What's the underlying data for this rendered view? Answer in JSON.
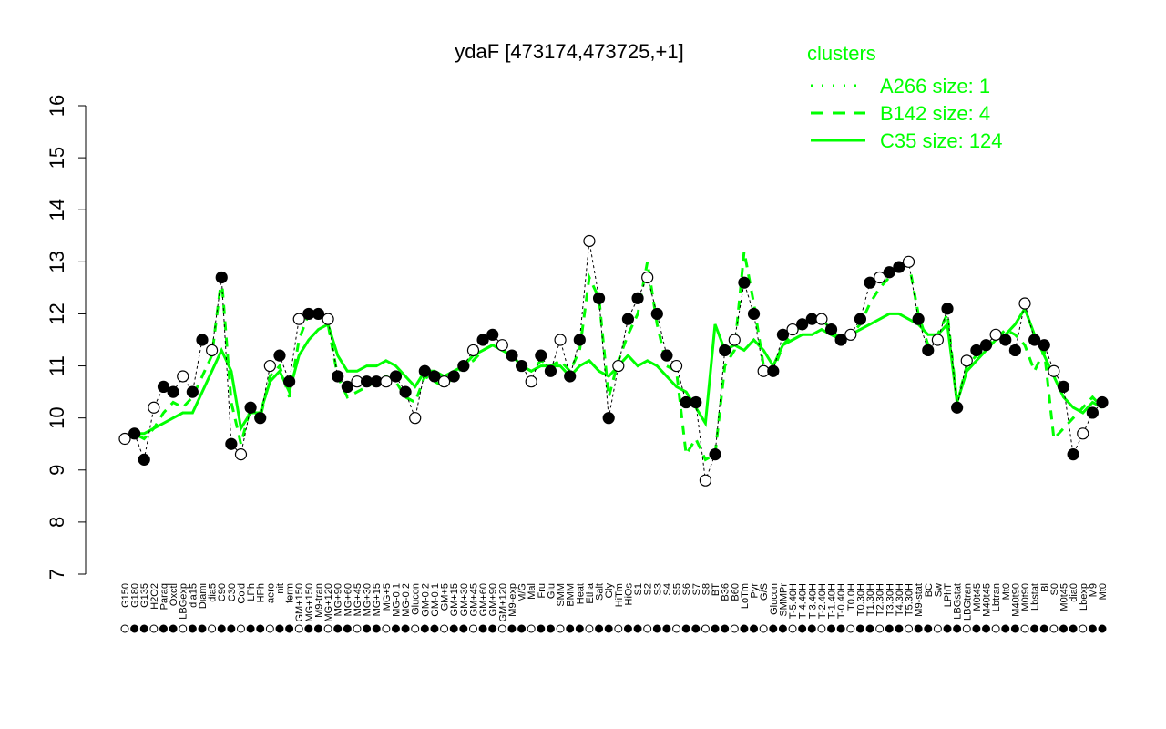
{
  "chart_data": {
    "type": "line",
    "title": "ydaF [473174,473725,+1]",
    "xlabel": "",
    "ylabel": "",
    "ylim": [
      7,
      16
    ],
    "yticks": [
      7,
      8,
      9,
      10,
      11,
      12,
      13,
      14,
      15,
      16
    ],
    "x_tick_labels": [
      "G150",
      "G180",
      "G135",
      "H2O2",
      "Paraq",
      "Oxctl",
      "LBGexp",
      "dia15",
      "Diami",
      "dia5",
      "C90",
      "C30",
      "Cold",
      "LPh",
      "HPh",
      "aero",
      "nit",
      "ferm",
      "GM+150",
      "MG+150",
      "M9-tran",
      "MG+120",
      "MG+90",
      "MG+60",
      "MG+45",
      "MG+30",
      "MG+15",
      "MG+5",
      "MG-0.1",
      "MG-0.2",
      "Glucon",
      "GM-0.2",
      "GM-0.1",
      "GM+5",
      "GM+15",
      "GM+30",
      "GM+45",
      "GM+60",
      "GM+90",
      "GM+120",
      "M9-exp",
      "M/G",
      "Mal",
      "Fru",
      "Glu",
      "SMM",
      "BMM",
      "Heat",
      "Etha",
      "Salt",
      "Gly",
      "HiTm",
      "HiOs",
      "S1",
      "S2",
      "S3",
      "S4",
      "S5",
      "S6",
      "S7",
      "S8",
      "BT",
      "B36",
      "B60",
      "LoTm",
      "Pyr",
      "G/S",
      "Glucon",
      "SMMPr",
      "T-5.40H",
      "T-4.40H",
      "T-3.40H",
      "T-2.40H",
      "T-1.40H",
      "T-0.40H",
      "T0.0H",
      "T0.30H",
      "T1.30H",
      "T2.30H",
      "T3.30H",
      "T4.30H",
      "T5.30H",
      "M9-stat",
      "BC",
      "Sw",
      "LPhT",
      "LBGstat",
      "LBGtran",
      "M0t45",
      "M40t45",
      "Lbtran",
      "Mt0",
      "M40t90",
      "M0t90",
      "Lbstat",
      "Bl",
      "S0",
      "M0t45",
      "dia0",
      "Lbexp",
      "M9",
      "Mt0"
    ],
    "legend_title": "clusters",
    "legend_placement": "top-right",
    "series": [
      {
        "name": "A266 size: 1",
        "style": "dotted",
        "color": "#00ff00",
        "values": []
      },
      {
        "name": "B142 size: 4",
        "style": "dashed",
        "color": "#00ff00",
        "values": [
          9.6,
          9.7,
          9.6,
          9.8,
          10.1,
          10.3,
          10.2,
          10.4,
          10.8,
          11.2,
          12.7,
          10.3,
          9.5,
          10.2,
          10.0,
          10.8,
          11.0,
          10.4,
          11.5,
          12.0,
          12.0,
          11.8,
          10.8,
          10.4,
          10.5,
          10.6,
          10.7,
          10.8,
          10.7,
          10.4,
          10.3,
          10.8,
          10.7,
          10.6,
          10.8,
          11.0,
          11.1,
          11.3,
          11.4,
          11.3,
          11.2,
          11.0,
          10.9,
          11.1,
          11.0,
          11.1,
          10.9,
          11.3,
          12.7,
          12.3,
          10.4,
          11.1,
          11.6,
          12.0,
          13.0,
          11.8,
          11.0,
          10.9,
          9.3,
          9.6,
          9.2,
          9.3,
          11.0,
          11.3,
          13.2,
          12.2,
          11.0,
          10.9,
          11.4,
          11.6,
          11.8,
          11.9,
          11.9,
          11.7,
          11.5,
          11.6,
          11.8,
          12.2,
          12.5,
          12.7,
          12.9,
          13.0,
          12.0,
          11.4,
          11.6,
          12.0,
          10.3,
          11.0,
          11.2,
          11.4,
          11.5,
          11.7,
          11.6,
          11.4,
          10.9,
          11.3,
          9.6,
          9.8,
          10.0,
          10.2,
          10.4,
          10.2
        ]
      },
      {
        "name": "C35 size: 124",
        "style": "solid",
        "color": "#00ff00",
        "values": [
          9.6,
          9.7,
          9.7,
          9.8,
          9.9,
          10.0,
          10.1,
          10.1,
          10.5,
          10.9,
          11.3,
          10.9,
          9.8,
          10.1,
          10.1,
          10.7,
          10.9,
          10.5,
          11.2,
          11.5,
          11.7,
          11.8,
          11.2,
          10.9,
          10.9,
          11.0,
          11.0,
          11.1,
          11.0,
          10.8,
          10.6,
          10.9,
          10.9,
          10.8,
          10.9,
          11.0,
          11.2,
          11.3,
          11.4,
          11.3,
          11.2,
          11.0,
          10.9,
          11.0,
          11.0,
          11.0,
          10.8,
          11.0,
          11.1,
          10.9,
          10.8,
          11.0,
          11.2,
          11.0,
          11.1,
          11.0,
          10.8,
          10.6,
          10.5,
          10.2,
          9.9,
          11.8,
          11.3,
          11.4,
          11.3,
          11.5,
          11.3,
          11.0,
          11.4,
          11.5,
          11.6,
          11.6,
          11.7,
          11.6,
          11.5,
          11.6,
          11.7,
          11.8,
          11.9,
          12.0,
          12.0,
          11.9,
          11.8,
          11.6,
          11.6,
          11.8,
          10.3,
          10.9,
          11.1,
          11.3,
          11.5,
          11.6,
          11.8,
          12.1,
          11.6,
          11.2,
          10.8,
          10.4,
          10.2,
          10.1,
          10.3,
          10.2
        ]
      },
      {
        "name": "ydaF points",
        "style": "points",
        "values": [
          9.6,
          9.7,
          9.2,
          10.2,
          10.6,
          10.5,
          10.8,
          10.5,
          11.5,
          11.3,
          12.7,
          9.5,
          9.3,
          10.2,
          10.0,
          11.0,
          11.2,
          10.7,
          11.9,
          12.0,
          12.0,
          11.9,
          10.8,
          10.6,
          10.7,
          10.7,
          10.7,
          10.7,
          10.8,
          10.5,
          10.0,
          10.9,
          10.8,
          10.7,
          10.8,
          11.0,
          11.3,
          11.5,
          11.6,
          11.4,
          11.2,
          11.0,
          10.7,
          11.2,
          10.9,
          11.5,
          10.8,
          11.5,
          13.4,
          12.3,
          10.0,
          11.0,
          11.9,
          12.3,
          12.7,
          12.0,
          11.2,
          11.0,
          10.3,
          10.3,
          8.8,
          9.3,
          11.3,
          11.5,
          12.6,
          12.0,
          10.9,
          10.9,
          11.6,
          11.7,
          11.8,
          11.9,
          11.9,
          11.7,
          11.5,
          11.6,
          11.9,
          12.6,
          12.7,
          12.8,
          12.9,
          13.0,
          11.9,
          11.3,
          11.5,
          12.1,
          10.2,
          11.1,
          11.3,
          11.4,
          11.6,
          11.5,
          11.3,
          12.2,
          11.5,
          11.4,
          10.9,
          10.6,
          9.3,
          9.7,
          10.1,
          10.3
        ]
      }
    ]
  }
}
